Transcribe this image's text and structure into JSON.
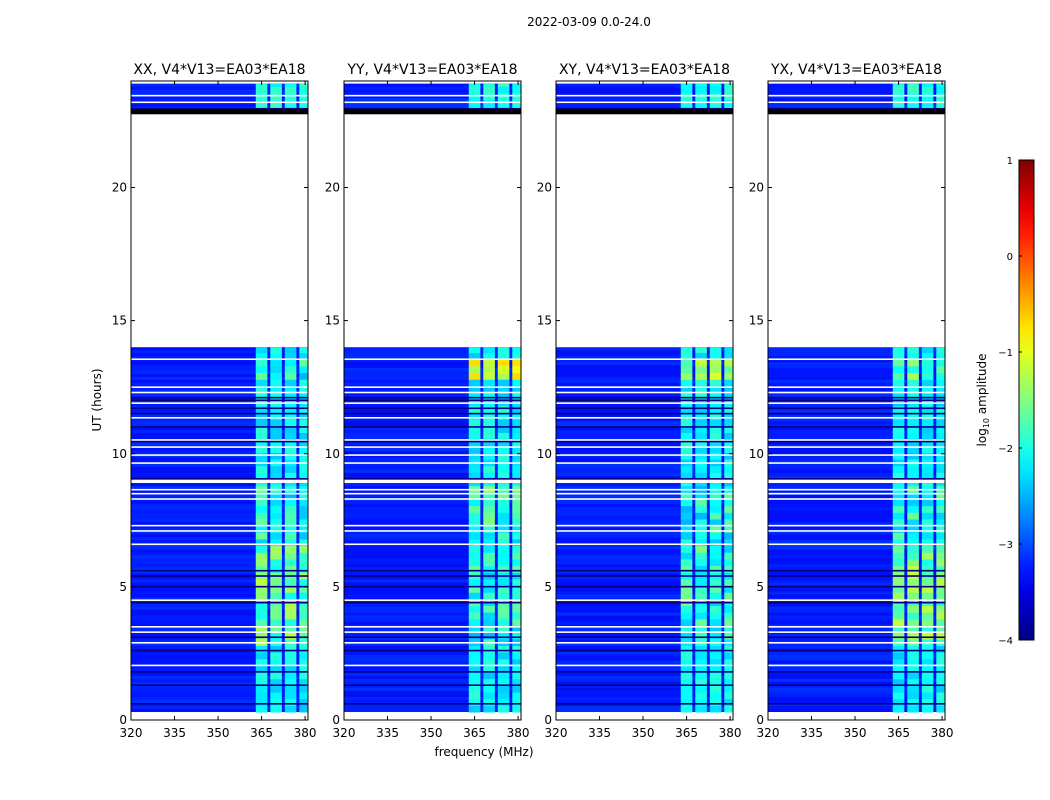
{
  "figure": {
    "suptitle": "2022-03-09 0.0-24.0"
  },
  "chart_data": {
    "type": "heatmap",
    "xlabel": "frequency (MHz)",
    "ylabel": "UT (hours)",
    "xlim": [
      320,
      381
    ],
    "ylim": [
      0,
      24
    ],
    "xticks": [
      320,
      335,
      350,
      365,
      380
    ],
    "yticks": [
      0,
      5,
      10,
      15,
      20
    ],
    "colormap": "jet",
    "colorbar": {
      "label": "log10 amplitude",
      "label_main": "log",
      "label_sub": "10",
      "label_tail": " amplitude",
      "range": [
        -4,
        1
      ],
      "ticks": [
        {
          "value": 1,
          "label": "1"
        },
        {
          "value": 0,
          "label": "0"
        },
        {
          "value": -1,
          "label": "−1"
        },
        {
          "value": -2,
          "label": "−2"
        },
        {
          "value": -3,
          "label": "−3"
        },
        {
          "value": -4,
          "label": "−4"
        }
      ]
    },
    "data_blocks_hours": [
      [
        0.3,
        8.9
      ],
      [
        9.05,
        10.45
      ],
      [
        10.55,
        14.0
      ],
      [
        22.8,
        23.9
      ]
    ],
    "gap_lines_hours": [
      0.12,
      0.25,
      2.05,
      2.9,
      3.3,
      3.5,
      4.5,
      6.6,
      7.1,
      7.3,
      8.3,
      8.5,
      8.65,
      9.65,
      9.95,
      10.25,
      11.35,
      11.9,
      12.3,
      12.5,
      13.55,
      23.2,
      23.45
    ],
    "dark_lines_hours": [
      0.6,
      1.3,
      1.8,
      2.6,
      3.1,
      4.4,
      5.0,
      5.4,
      5.6,
      9.05,
      10.45,
      11.0,
      11.5,
      11.7,
      12.0,
      12.1,
      22.85,
      22.95
    ],
    "rfi_channels_mhz": [
      [
        363,
        367
      ],
      [
        368,
        372
      ],
      [
        373,
        377
      ],
      [
        378,
        381
      ]
    ],
    "panels": [
      {
        "title": "XX, V4*V13=EA03*EA18",
        "rfi_peak": [
          {
            "t0": 2.6,
            "t1": 6.4,
            "amp": -1.2
          },
          {
            "t0": 6.8,
            "t1": 8.8,
            "amp": -1.6
          },
          {
            "t0": 12.6,
            "t1": 13.5,
            "amp": -1.6
          }
        ]
      },
      {
        "title": "YY, V4*V13=EA03*EA18",
        "rfi_peak": [
          {
            "t0": 2.6,
            "t1": 6.4,
            "amp": -1.6
          },
          {
            "t0": 6.8,
            "t1": 8.8,
            "amp": -1.4
          },
          {
            "t0": 12.6,
            "t1": 13.5,
            "amp": -0.7
          }
        ]
      },
      {
        "title": "XY, V4*V13=EA03*EA18",
        "rfi_peak": [
          {
            "t0": 2.6,
            "t1": 6.4,
            "amp": -1.5
          },
          {
            "t0": 6.8,
            "t1": 8.8,
            "amp": -1.6
          },
          {
            "t0": 12.6,
            "t1": 13.5,
            "amp": -1.0
          }
        ]
      },
      {
        "title": "YX, V4*V13=EA03*EA18",
        "rfi_peak": [
          {
            "t0": 2.6,
            "t1": 6.4,
            "amp": -1.1
          },
          {
            "t0": 6.8,
            "t1": 8.8,
            "amp": -1.5
          },
          {
            "t0": 12.6,
            "t1": 13.5,
            "amp": -1.2
          }
        ]
      }
    ]
  }
}
